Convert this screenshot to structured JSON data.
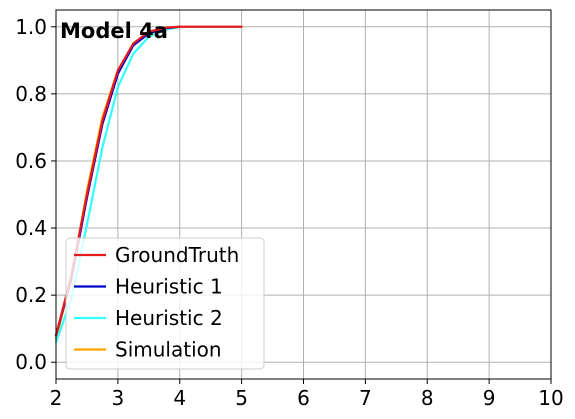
{
  "chart_data": {
    "type": "line",
    "title": "Model 4a",
    "xlabel": "",
    "ylabel": "",
    "xlim": [
      2,
      10
    ],
    "ylim": [
      -0.05,
      1.05
    ],
    "xticks": [
      "2",
      "3",
      "4",
      "5",
      "6",
      "7",
      "8",
      "9",
      "10"
    ],
    "yticks": [
      "0.0",
      "0.2",
      "0.4",
      "0.6",
      "0.8",
      "1.0"
    ],
    "grid": true,
    "legend_position": "lower-left",
    "series": [
      {
        "name": "GroundTruth",
        "color": "#e41a1c",
        "x": [
          2.0,
          2.25,
          2.5,
          2.75,
          3.0,
          3.25,
          3.5,
          3.75,
          4.0,
          4.25,
          4.5,
          4.75,
          5.0
        ],
        "y": [
          0.08,
          0.26,
          0.5,
          0.72,
          0.87,
          0.95,
          0.985,
          0.997,
          1.0,
          1.0,
          1.0,
          1.0,
          1.0
        ]
      },
      {
        "name": "Heuristic 1",
        "color": "#0000cc",
        "x": [
          2.0,
          2.25,
          2.5,
          2.75,
          3.0,
          3.25,
          3.5,
          3.75,
          4.0
        ],
        "y": [
          0.08,
          0.25,
          0.49,
          0.71,
          0.86,
          0.945,
          0.98,
          0.995,
          1.0
        ]
      },
      {
        "name": "Heuristic 2",
        "color": "#33ffff",
        "x": [
          2.0,
          2.25,
          2.5,
          2.75,
          3.0,
          3.25,
          3.5,
          3.75,
          4.0
        ],
        "y": [
          0.06,
          0.19,
          0.41,
          0.64,
          0.82,
          0.92,
          0.97,
          0.99,
          1.0
        ]
      },
      {
        "name": "Simulation",
        "color": "#ffa500",
        "x": [
          2.0,
          2.25,
          2.5,
          2.75,
          3.0,
          3.25,
          3.5,
          3.75,
          4.0
        ],
        "y": [
          0.07,
          0.25,
          0.51,
          0.73,
          0.87,
          0.95,
          0.985,
          0.997,
          1.0
        ]
      }
    ]
  }
}
